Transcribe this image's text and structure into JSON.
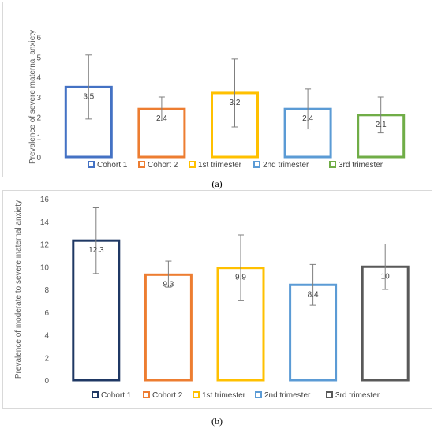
{
  "charts": [
    {
      "id": "a",
      "caption": "(a)",
      "ylabel": "Prevalence of severe maternal anxiety",
      "ymax": 6,
      "ystep": 1,
      "bar_stroke_width": 3,
      "chart_data": {
        "type": "bar",
        "categories": [
          "Cohort 1",
          "Cohort 2",
          "1st trimester",
          "2nd trimester",
          "3rd trimester"
        ],
        "values": [
          3.5,
          2.4,
          3.2,
          2.4,
          2.1
        ],
        "labels": [
          "3.5",
          "2.4",
          "3.2",
          "2.4",
          "2.1"
        ],
        "error_low": [
          1.9,
          1.8,
          1.5,
          1.4,
          1.2
        ],
        "error_high": [
          5.1,
          3.0,
          4.9,
          3.4,
          3.0
        ],
        "colors": [
          "#4472C4",
          "#ED7D31",
          "#FFC000",
          "#5B9BD5",
          "#70AD47"
        ],
        "ylabel": "Prevalence of severe maternal anxiety",
        "ylim": [
          0,
          6
        ],
        "legend": "bottom"
      }
    },
    {
      "id": "b",
      "caption": "(b)",
      "ylabel": "Prevalence of moderate to severe maternal anxiety",
      "ymax": 16,
      "ystep": 2,
      "bar_stroke_width": 3,
      "chart_data": {
        "type": "bar",
        "categories": [
          "Cohort 1",
          "Cohort 2",
          "1st trimester",
          "2nd trimester",
          "3rd trimester"
        ],
        "values": [
          12.3,
          9.3,
          9.9,
          8.4,
          10
        ],
        "labels": [
          "12.3",
          "9.3",
          "9.9",
          "8.4",
          "10"
        ],
        "error_low": [
          9.4,
          8.2,
          7.0,
          6.6,
          8.0
        ],
        "error_high": [
          15.2,
          10.5,
          12.8,
          10.2,
          12.0
        ],
        "colors": [
          "#1F3864",
          "#ED7D31",
          "#FFC000",
          "#5B9BD5",
          "#595959"
        ],
        "ylabel": "Prevalence of moderate to severe maternal anxiety",
        "ylim": [
          0,
          16
        ],
        "legend": "bottom"
      }
    }
  ]
}
